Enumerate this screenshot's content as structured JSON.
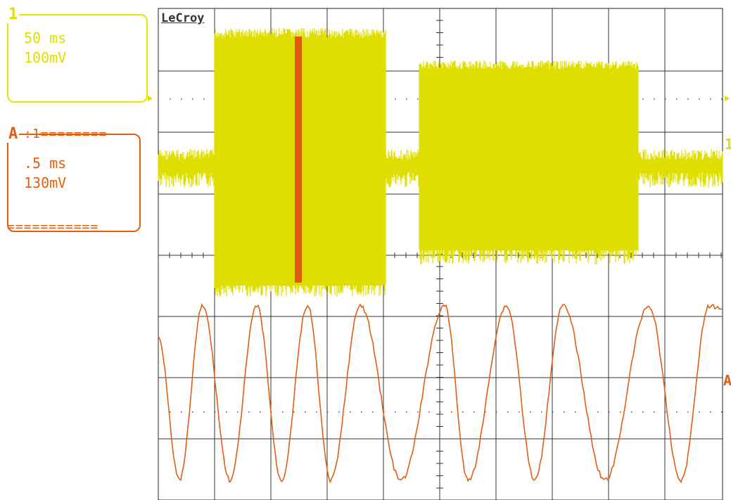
{
  "brand": "LeCroy",
  "channel1": {
    "badge": "1",
    "timebase": "50 ms",
    "volts": "100mV",
    "marker": "1",
    "color": "#dede00"
  },
  "trace_a": {
    "badge": "A",
    "header": ":1========",
    "timebase": ".5 ms",
    "volts": "130mV",
    "footer": "===========",
    "marker": "A",
    "color": "#e15f12"
  }
}
